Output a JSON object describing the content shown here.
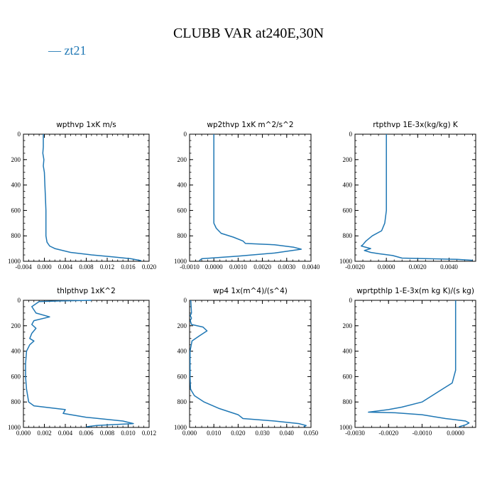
{
  "title": "CLUBB VAR at240E,30N",
  "legend": [
    {
      "label": "zt21",
      "color": "#1f77b4"
    }
  ],
  "chart_data": [
    {
      "type": "line",
      "title": "wpthvp   1xK m/s",
      "xlim": [
        -0.004,
        0.02
      ],
      "ylim": [
        1000,
        0
      ],
      "xticks": [
        -0.004,
        0.0,
        0.004,
        0.008,
        0.012,
        0.016,
        0.02
      ],
      "xtick_labels": [
        "-0.004",
        "0.000",
        "0.004",
        "0.008",
        "0.012",
        "0.016",
        "0.020"
      ],
      "yticks": [
        0,
        200,
        400,
        600,
        800,
        1000
      ],
      "ytick_labels": [
        "0",
        "200",
        "400",
        "600",
        "800",
        "1000"
      ],
      "series": [
        {
          "name": "zt21",
          "x": [
            -0.0002,
            -0.0002,
            -0.0002,
            -0.0003,
            -0.0001,
            -0.0002,
            0.0,
            0.0001,
            0.0002,
            0.0003,
            0.0003,
            0.0003,
            0.0005,
            0.001,
            0.002,
            0.005,
            0.009,
            0.013,
            0.0165,
            0.0185
          ],
          "y": [
            0,
            50,
            100,
            150,
            200,
            250,
            300,
            400,
            500,
            600,
            700,
            800,
            850,
            880,
            900,
            930,
            950,
            965,
            980,
            995
          ]
        }
      ]
    },
    {
      "type": "line",
      "title": "wp2thvp   1xK m^2/s^2",
      "xlim": [
        -0.001,
        0.004
      ],
      "ylim": [
        1000,
        0
      ],
      "xticks": [
        -0.001,
        0.0,
        0.001,
        0.002,
        0.003,
        0.004
      ],
      "xtick_labels": [
        "-0.0010",
        "0.0000",
        "0.0010",
        "0.0020",
        "0.0030",
        "0.0040"
      ],
      "yticks": [
        0,
        200,
        400,
        600,
        800,
        1000
      ],
      "ytick_labels": [
        "0",
        "200",
        "400",
        "600",
        "800",
        "1000"
      ],
      "series": [
        {
          "name": "zt21",
          "x": [
            0.0,
            0.0,
            0.0,
            0.0,
            0.0,
            0.0,
            0.0001,
            0.0003,
            0.0008,
            0.0012,
            0.0013,
            0.0025,
            0.0033,
            0.0036,
            0.0025,
            0.001,
            -0.0005,
            -0.0006
          ],
          "y": [
            0,
            100,
            200,
            400,
            600,
            700,
            740,
            780,
            810,
            840,
            860,
            870,
            890,
            905,
            935,
            960,
            980,
            995
          ]
        }
      ]
    },
    {
      "type": "line",
      "title": "rtpthvp   1E-3x(kg/kg) K",
      "xlim": [
        -0.002,
        0.0057
      ],
      "ylim": [
        1000,
        0
      ],
      "xticks": [
        -0.002,
        0.0,
        0.002,
        0.004
      ],
      "xtick_labels": [
        "-0.0020",
        "0.0000",
        "0.0020",
        "0.0040"
      ],
      "yticks": [
        0,
        200,
        400,
        600,
        800,
        1000
      ],
      "ytick_labels": [
        "0",
        "200",
        "400",
        "600",
        "800",
        "1000"
      ],
      "series": [
        {
          "name": "zt21",
          "x": [
            0.0,
            0.0,
            0.0,
            0.0,
            0.0,
            -0.0001,
            -0.0003,
            -0.0009,
            -0.0013,
            -0.0015,
            -0.0016,
            -0.001,
            -0.0014,
            -0.001,
            -0.0005,
            0.0004,
            0.001,
            0.0045,
            0.0055
          ],
          "y": [
            0,
            200,
            400,
            550,
            600,
            700,
            760,
            800,
            840,
            870,
            880,
            900,
            915,
            930,
            940,
            955,
            975,
            985,
            992
          ]
        }
      ]
    },
    {
      "type": "line",
      "title": "thlpthvp   1xK^2",
      "xlim": [
        0.0,
        0.012
      ],
      "ylim": [
        1000,
        0
      ],
      "xticks": [
        0.0,
        0.002,
        0.004,
        0.006,
        0.008,
        0.01,
        0.012
      ],
      "xtick_labels": [
        "0.000",
        "0.002",
        "0.004",
        "0.006",
        "0.008",
        "0.010",
        "0.012"
      ],
      "yticks": [
        0,
        200,
        400,
        600,
        800,
        1000
      ],
      "ytick_labels": [
        "0",
        "200",
        "400",
        "600",
        "800",
        "1000"
      ],
      "series": [
        {
          "name": "zt21",
          "x": [
            0.0065,
            0.0035,
            0.0015,
            0.0008,
            0.0012,
            0.0025,
            0.001,
            0.0008,
            0.0012,
            0.0008,
            0.0006,
            0.001,
            0.0006,
            0.0003,
            0.0002,
            0.0002,
            0.0003,
            0.0005,
            0.001,
            0.004,
            0.0038,
            0.006,
            0.0095,
            0.0105,
            0.007,
            0.006
          ],
          "y": [
            0,
            5,
            10,
            50,
            100,
            130,
            160,
            190,
            220,
            260,
            300,
            320,
            350,
            400,
            500,
            600,
            700,
            800,
            830,
            860,
            890,
            920,
            950,
            970,
            985,
            995
          ]
        }
      ]
    },
    {
      "type": "line",
      "title": "wp4   1x(m^4)/(s^4)",
      "xlim": [
        0.0,
        0.05
      ],
      "ylim": [
        1000,
        0
      ],
      "xticks": [
        0.0,
        0.01,
        0.02,
        0.03,
        0.04,
        0.05
      ],
      "xtick_labels": [
        "0.000",
        "0.010",
        "0.020",
        "0.030",
        "0.040",
        "0.050"
      ],
      "yticks": [
        0,
        200,
        400,
        600,
        800,
        1000
      ],
      "ytick_labels": [
        "0",
        "200",
        "400",
        "600",
        "800",
        "1000"
      ],
      "series": [
        {
          "name": "zt21",
          "x": [
            0.0005,
            0.0008,
            0.0003,
            0.0008,
            0.0003,
            0.0008,
            0.0055,
            0.0072,
            0.004,
            0.001,
            0.0002,
            0.0002,
            0.0004,
            0.002,
            0.006,
            0.012,
            0.02,
            0.022,
            0.035,
            0.045,
            0.048,
            0.047
          ],
          "y": [
            0,
            100,
            120,
            140,
            160,
            190,
            210,
            240,
            280,
            320,
            400,
            600,
            700,
            750,
            800,
            850,
            900,
            930,
            950,
            970,
            985,
            995
          ]
        }
      ]
    },
    {
      "type": "line",
      "title": "wprtpthlp   1-E-3x(m kg K)/(s kg)",
      "xlim": [
        -0.003,
        0.0006
      ],
      "ylim": [
        1000,
        0
      ],
      "xticks": [
        -0.003,
        -0.002,
        -0.001,
        0.0
      ],
      "xtick_labels": [
        "-0.0030",
        "-0.0020",
        "-0.0010",
        "0.0000"
      ],
      "yticks": [
        0,
        200,
        400,
        600,
        800,
        1000
      ],
      "ytick_labels": [
        "0",
        "200",
        "400",
        "600",
        "800",
        "1000"
      ],
      "series": [
        {
          "name": "zt21",
          "x": [
            0.0,
            0.0,
            0.0,
            0.0,
            -0.0001,
            -0.0004,
            -0.001,
            -0.0016,
            -0.002,
            -0.0026,
            -0.0018,
            -0.001,
            -0.0003,
            0.0003,
            0.0004,
            0.0003,
            0.0001
          ],
          "y": [
            0,
            200,
            400,
            550,
            650,
            700,
            800,
            840,
            860,
            880,
            885,
            900,
            930,
            950,
            965,
            980,
            995
          ]
        }
      ]
    }
  ]
}
